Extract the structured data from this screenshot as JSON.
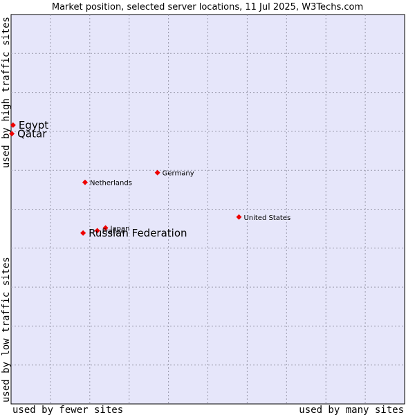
{
  "chart_data": {
    "type": "scatter",
    "title": "Market position, selected server locations, 11 Jul 2025, W3Techs.com",
    "xlabel_low": "used by fewer sites",
    "xlabel_high": "used by many sites",
    "ylabel_low": "used by low traffic sites",
    "ylabel_high": "used by high traffic sites",
    "xlim": [
      0,
      100
    ],
    "ylim": [
      0,
      100
    ],
    "grid": true,
    "points": [
      {
        "label": "Egypt",
        "x": 0.5,
        "y": 71.6,
        "emphasis": true
      },
      {
        "label": "Qatar",
        "x": 0.2,
        "y": 69.4,
        "emphasis": true
      },
      {
        "label": "Germany",
        "x": 37.2,
        "y": 59.4,
        "emphasis": false
      },
      {
        "label": "Netherlands",
        "x": 18.8,
        "y": 56.9,
        "emphasis": false
      },
      {
        "label": "United States",
        "x": 57.9,
        "y": 48.0,
        "emphasis": false
      },
      {
        "label": "Japan",
        "x": 24.0,
        "y": 45.2,
        "emphasis": false
      },
      {
        "label": "France",
        "x": 21.9,
        "y": 44.5,
        "emphasis": false
      },
      {
        "label": "Russian Federation",
        "x": 18.3,
        "y": 43.9,
        "emphasis": true
      }
    ]
  },
  "colors": {
    "plot_background": "#e6e6fa",
    "marker": "#ee0000",
    "grid": "#9999aa"
  }
}
